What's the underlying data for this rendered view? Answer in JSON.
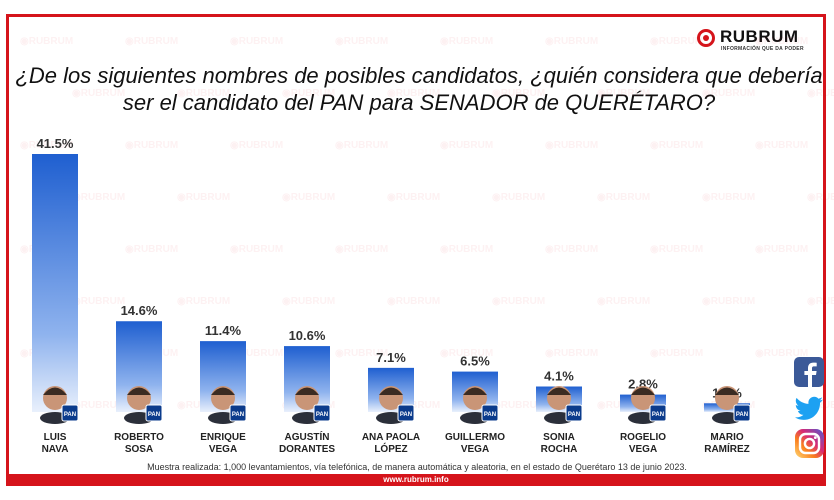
{
  "brand": {
    "name": "RUBRUM",
    "tagline": "INFORMACIÓN QUE DA PODER",
    "accent_color": "#d5141b",
    "bar_color": "#1f5fd0",
    "url": "www.rubrum.info"
  },
  "question": {
    "line1": "¿De los siguientes nombres de posibles candidatos, ¿quién considera que debería",
    "line2": "ser el candidato del PAN para SENADOR de QUERÉTARO?"
  },
  "chart_data": {
    "type": "bar",
    "categories": [
      "LUIS NAVA",
      "ROBERTO SOSA",
      "ENRIQUE VEGA",
      "AGUSTÍN DORANTES",
      "ANA PAOLA LÓPEZ",
      "GUILLERMO VEGA",
      "SONIA ROCHA",
      "ROGELIO VEGA",
      "MARIO RAMÍREZ"
    ],
    "label_lines": [
      [
        "LUIS",
        "NAVA"
      ],
      [
        "ROBERTO",
        "SOSA"
      ],
      [
        "ENRIQUE",
        "VEGA"
      ],
      [
        "AGUSTÍN",
        "DORANTES"
      ],
      [
        "ANA PAOLA",
        "LÓPEZ"
      ],
      [
        "GUILLERMO",
        "VEGA"
      ],
      [
        "SONIA",
        "ROCHA"
      ],
      [
        "ROGELIO",
        "VEGA"
      ],
      [
        "MARIO",
        "RAMÍREZ"
      ]
    ],
    "values": [
      41.5,
      14.6,
      11.4,
      10.6,
      7.1,
      6.5,
      4.1,
      2.8,
      1.4
    ],
    "value_labels": [
      "41.5%",
      "14.6%",
      "11.4%",
      "10.6%",
      "7.1%",
      "6.5%",
      "4.1%",
      "2.8%",
      "1.4%"
    ],
    "party_badge": "PAN",
    "ylim": [
      0,
      41.5
    ]
  },
  "social_icons": [
    "facebook-icon",
    "twitter-icon",
    "instagram-icon"
  ],
  "footnote": "Muestra realizada: 1,000 levantamientos, vía telefónica, de manera automática y aleatoria, en el estado de Querétaro 13 de junio 2023."
}
